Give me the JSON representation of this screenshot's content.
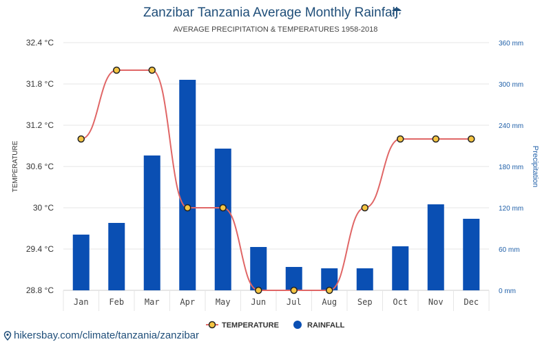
{
  "header": {
    "title": "Zanzibar Tanzania Average Monthly Rainfall",
    "subtitle": "AVERAGE PRECIPITATION & TEMPERATURES 1958-2018",
    "title_icon": "umbrella-rain-icon"
  },
  "footer": {
    "source_text": "hikersbay.com/climate/tanzania/zanzibar",
    "source_icon": "map-pin-icon"
  },
  "colors": {
    "bar": "#0a4fb3",
    "line": "#e06666",
    "marker_fill": "#f5c542",
    "marker_stroke": "#222222",
    "grid": "#e6e6e6",
    "title": "#1f4e79",
    "right_axis": "#1f5fa8"
  },
  "chart_data": {
    "type": "bar",
    "title": "Zanzibar Tanzania Average Monthly Rainfall",
    "subtitle": "AVERAGE PRECIPITATION & TEMPERATURES 1958-2018",
    "categories": [
      "Jan",
      "Feb",
      "Mar",
      "Apr",
      "May",
      "Jun",
      "Jul",
      "Aug",
      "Sep",
      "Oct",
      "Nov",
      "Dec"
    ],
    "series": [
      {
        "name": "TEMPERATURE",
        "type": "line",
        "axis": "left",
        "unit": "°C",
        "values": [
          31,
          32,
          32,
          30,
          30,
          28.8,
          28.8,
          28.8,
          30,
          31,
          31,
          31
        ]
      },
      {
        "name": "RAINFALL",
        "type": "bar",
        "axis": "right",
        "unit": "mm",
        "values": [
          81,
          98,
          196,
          306,
          206,
          63,
          34,
          32,
          32,
          64,
          125,
          104
        ]
      }
    ],
    "ylabel": "TEMPERATURE",
    "ylabel_right": "Precipitation",
    "ylim": [
      28.8,
      32.4
    ],
    "ylim_right": [
      0,
      360
    ],
    "yticks": [
      "28.8 °C",
      "29.4 °C",
      "30 °C",
      "30.6 °C",
      "31.2 °C",
      "31.8 °C",
      "32.4 °C"
    ],
    "yticks_right": [
      "0 mm",
      "60 mm",
      "120 mm",
      "180 mm",
      "240 mm",
      "300 mm",
      "360 mm"
    ],
    "grid": true,
    "legend": {
      "position": "bottom-center",
      "entries": [
        {
          "label": "TEMPERATURE",
          "marker": "line-with-circle"
        },
        {
          "label": "RAINFALL",
          "marker": "circle"
        }
      ]
    }
  }
}
